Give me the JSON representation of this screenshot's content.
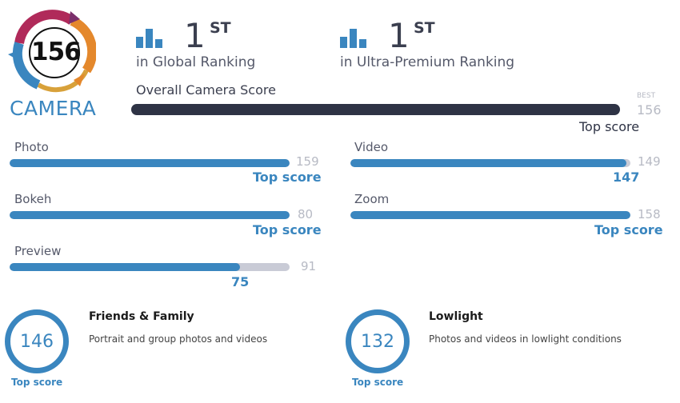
{
  "badge": {
    "score": "156",
    "label": "CAMERA"
  },
  "rankings": [
    {
      "number": "1",
      "suffix": "ST",
      "label": "in Global Ranking"
    },
    {
      "number": "1",
      "suffix": "ST",
      "label": "in Ultra-Premium Ranking"
    }
  ],
  "overall": {
    "title": "Overall Camera Score",
    "best_label": "BEST",
    "best_value": "156",
    "note": "Top score",
    "fraction": 1.0
  },
  "subscores": {
    "photo": {
      "label": "Photo",
      "max": "159",
      "note": "Top score",
      "fraction": 1.0
    },
    "video": {
      "label": "Video",
      "max": "149",
      "note": "147",
      "fraction": 0.987
    },
    "bokeh": {
      "label": "Bokeh",
      "max": "80",
      "note": "Top score",
      "fraction": 1.0
    },
    "zoom": {
      "label": "Zoom",
      "max": "158",
      "note": "Top score",
      "fraction": 1.0
    },
    "preview": {
      "label": "Preview",
      "max": "91",
      "note": "75",
      "fraction": 0.824
    }
  },
  "categories": [
    {
      "score": "146",
      "note": "Top score",
      "title": "Friends & Family",
      "desc": "Portrait and group photos and videos"
    },
    {
      "score": "132",
      "note": "Top score",
      "title": "Lowlight",
      "desc": "Photos and videos in lowlight conditions"
    }
  ],
  "colors": {
    "accent": "#3a86bf",
    "dark": "#2e3345",
    "track": "#c9cbd6",
    "muted": "#b7bac4"
  },
  "icons": {
    "rank": "bar-chart-icon",
    "badge": "camera-score-badge-icon"
  }
}
